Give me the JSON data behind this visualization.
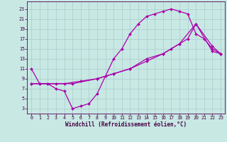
{
  "bg_color": "#c8e8e4",
  "grid_color": "#aacccc",
  "line_color": "#aa00aa",
  "xlim_min": -0.5,
  "xlim_max": 23.5,
  "ylim_min": 2,
  "ylim_max": 24.5,
  "xticks": [
    0,
    1,
    2,
    3,
    4,
    5,
    6,
    7,
    8,
    9,
    10,
    11,
    12,
    13,
    14,
    15,
    16,
    17,
    18,
    19,
    20,
    21,
    22,
    23
  ],
  "yticks": [
    3,
    5,
    7,
    9,
    11,
    13,
    15,
    17,
    19,
    21,
    23
  ],
  "xlabel": "Windchill (Refroidissement éolien,°C)",
  "line1_x": [
    0,
    1,
    2,
    3,
    4,
    5,
    6,
    7,
    8,
    9,
    10,
    11,
    12,
    13,
    14,
    15,
    16,
    17,
    18,
    19,
    20,
    21,
    22,
    23
  ],
  "line1_y": [
    11,
    8,
    8,
    7,
    6.5,
    3,
    3.5,
    4,
    6,
    9.5,
    13,
    15,
    18,
    20,
    21.5,
    22,
    22.5,
    23,
    22.5,
    22,
    18,
    17,
    15,
    14
  ],
  "line2_x": [
    0,
    1,
    3,
    5,
    8,
    10,
    12,
    14,
    16,
    17,
    18,
    19,
    20,
    22,
    23
  ],
  "line2_y": [
    8,
    8,
    8,
    8,
    9,
    10,
    11,
    12.5,
    14,
    15,
    16,
    17,
    20,
    15.5,
    14
  ],
  "line3_x": [
    0,
    2,
    4,
    6,
    8,
    10,
    12,
    14,
    16,
    18,
    20,
    22,
    23
  ],
  "line3_y": [
    8,
    8,
    8,
    8.5,
    9,
    10,
    11,
    13,
    14,
    16,
    20,
    14.5,
    14
  ],
  "marker": "D",
  "markersize": 2.0,
  "linewidth": 0.9,
  "tick_fontsize": 4.8,
  "xlabel_fontsize": 5.5
}
